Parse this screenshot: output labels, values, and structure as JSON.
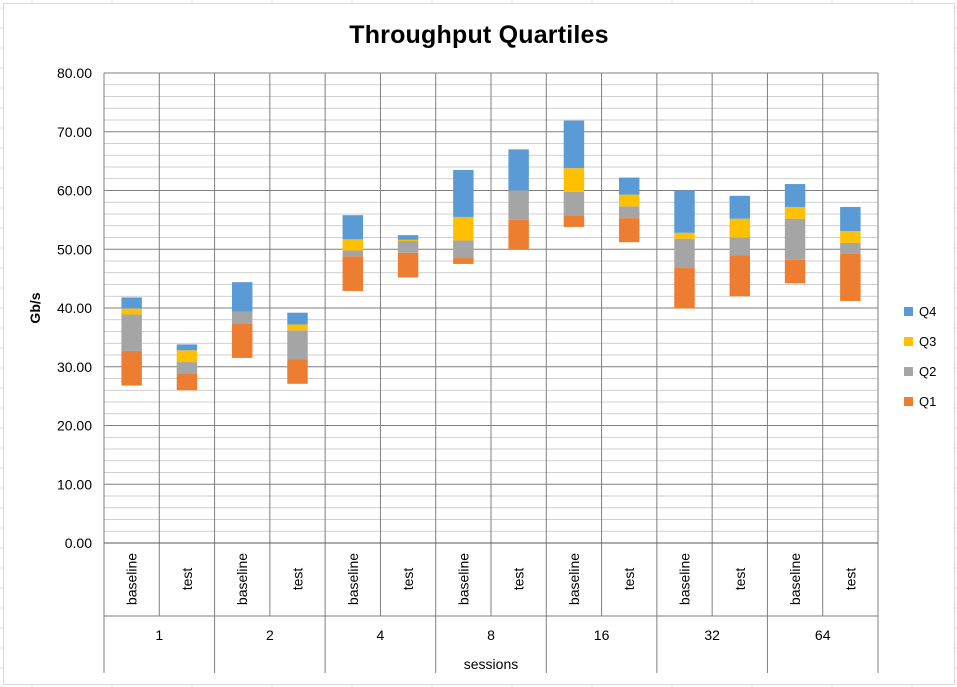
{
  "chart_data": {
    "type": "bar",
    "stacked": true,
    "floating_base": true,
    "title": "Throughput Quartiles",
    "ylabel": "Gb/s",
    "xlabel": "sessions",
    "ylim": [
      0,
      80
    ],
    "y_ticks": [
      "0.00",
      "10.00",
      "20.00",
      "30.00",
      "40.00",
      "50.00",
      "60.00",
      "70.00",
      "80.00"
    ],
    "grid": true,
    "legend_position": "right",
    "groups": [
      "1",
      "2",
      "4",
      "8",
      "16",
      "32",
      "64"
    ],
    "categories": [
      "baseline",
      "test",
      "baseline",
      "test",
      "baseline",
      "test",
      "baseline",
      "test",
      "baseline",
      "test",
      "baseline",
      "test",
      "baseline",
      "test"
    ],
    "min": [
      26.8,
      26.0,
      31.5,
      27.1,
      42.9,
      45.2,
      47.5,
      50.0,
      53.8,
      51.2,
      39.9,
      42.0,
      44.2,
      41.2
    ],
    "series": [
      {
        "name": "Q1",
        "color": "#ed7d31",
        "values": [
          5.9,
          2.9,
          5.9,
          4.2,
          5.9,
          4.2,
          1.0,
          5.0,
          2.0,
          4.1,
          6.9,
          7.0,
          4.0,
          8.0
        ]
      },
      {
        "name": "Q2",
        "color": "#a5a5a5",
        "values": [
          6.2,
          1.9,
          2.0,
          4.9,
          1.0,
          2.0,
          3.0,
          5.0,
          4.0,
          2.0,
          5.0,
          3.0,
          7.0,
          1.9
        ]
      },
      {
        "name": "Q3",
        "color": "#ffc000",
        "values": [
          1.0,
          2.0,
          0,
          1.0,
          1.9,
          0.2,
          4.0,
          0,
          4.0,
          2.0,
          1.0,
          3.2,
          2.0,
          2.0
        ]
      },
      {
        "name": "Q4",
        "color": "#5b9bd5",
        "values": [
          1.9,
          1.0,
          5.0,
          2.0,
          4.1,
          0.8,
          8.0,
          7.0,
          8.1,
          2.9,
          7.2,
          3.9,
          3.9,
          4.1
        ]
      }
    ],
    "legend": [
      "Q4",
      "Q3",
      "Q2",
      "Q1"
    ]
  },
  "colors": {
    "background": "#ffffff",
    "gridline": "#7f7f7f",
    "sheet_grid": "#e0e0e0"
  }
}
